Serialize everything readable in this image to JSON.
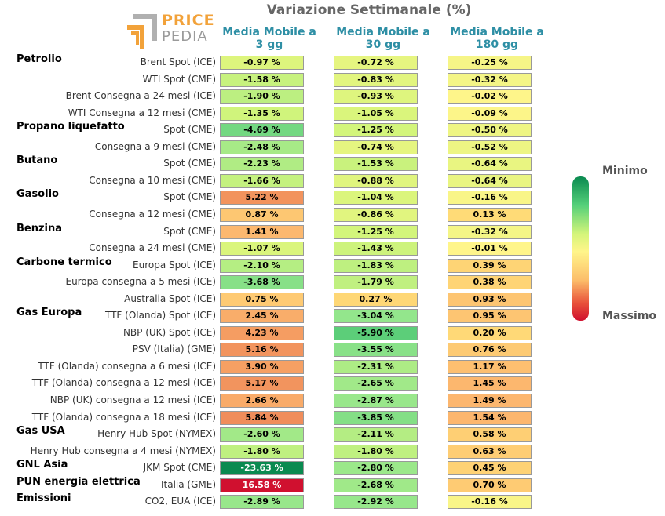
{
  "title": "Variazione Settimanale (%)",
  "logo": {
    "line1": "PRICE",
    "line2": "PEDIA"
  },
  "columns": [
    "Media Mobile a 3 gg",
    "Media Mobile a 30 gg",
    "Media Mobile a 180 gg"
  ],
  "legend": {
    "min_label": "Minimo",
    "max_label": "Massimo"
  },
  "colors": {
    "title": "#666666",
    "column_header": "#2e8fa5",
    "min": "#0a8a50",
    "max": "#d0102f"
  },
  "chart_data": {
    "type": "table",
    "title": "Variazione Settimanale (%)",
    "groups": [
      {
        "name": "Petrolio",
        "row": 0
      },
      {
        "name": "Propano liquefatto",
        "row": 4
      },
      {
        "name": "Butano",
        "row": 6
      },
      {
        "name": "Gasolio",
        "row": 8
      },
      {
        "name": "Benzina",
        "row": 10
      },
      {
        "name": "Carbone termico",
        "row": 12
      },
      {
        "name": "Gas Europa",
        "row": 15
      },
      {
        "name": "Gas USA",
        "row": 22
      },
      {
        "name": "GNL Asia",
        "row": 24
      },
      {
        "name": "PUN energia elettrica",
        "row": 25
      },
      {
        "name": "Emissioni",
        "row": 26
      }
    ],
    "rows": [
      {
        "label": "Brent Spot (ICE)",
        "values": [
          -0.97,
          -0.72,
          -0.25
        ]
      },
      {
        "label": "WTI Spot (CME)",
        "values": [
          -1.58,
          -0.83,
          -0.32
        ]
      },
      {
        "label": "Brent Consegna a 24 mesi (ICE)",
        "values": [
          -1.9,
          -0.93,
          -0.02
        ]
      },
      {
        "label": "WTI Consegna a 12 mesi (CME)",
        "values": [
          -1.35,
          -1.05,
          -0.09
        ]
      },
      {
        "label": "Spot (CME)",
        "values": [
          -4.69,
          -1.25,
          -0.5
        ]
      },
      {
        "label": "Consegna a 9 mesi (CME)",
        "values": [
          -2.48,
          -0.74,
          -0.52
        ]
      },
      {
        "label": "Spot (CME)",
        "values": [
          -2.23,
          -1.53,
          -0.64
        ]
      },
      {
        "label": "Consegna a 10 mesi (CME)",
        "values": [
          -1.66,
          -0.88,
          -0.64
        ]
      },
      {
        "label": "Spot (CME)",
        "values": [
          5.22,
          -1.04,
          -0.16
        ]
      },
      {
        "label": "Consegna a 12 mesi (CME)",
        "values": [
          0.87,
          -0.86,
          0.13
        ]
      },
      {
        "label": "Spot (CME)",
        "values": [
          1.41,
          -1.25,
          -0.32
        ]
      },
      {
        "label": "Consegna a 24 mesi (CME)",
        "values": [
          -1.07,
          -1.43,
          -0.01
        ]
      },
      {
        "label": "Europa Spot (ICE)",
        "values": [
          -2.1,
          -1.83,
          0.39
        ]
      },
      {
        "label": "Europa consegna a 5 mesi (ICE)",
        "values": [
          -3.68,
          -1.79,
          0.38
        ]
      },
      {
        "label": "Australia Spot (ICE)",
        "values": [
          0.75,
          0.27,
          0.93
        ]
      },
      {
        "label": "TTF (Olanda) Spot (ICE)",
        "values": [
          2.45,
          -3.04,
          0.95
        ]
      },
      {
        "label": "NBP (UK) Spot (ICE)",
        "values": [
          4.23,
          -5.9,
          0.2
        ]
      },
      {
        "label": "PSV (Italia) (GME)",
        "values": [
          5.16,
          -3.55,
          0.76
        ]
      },
      {
        "label": "TTF (Olanda) consegna a 6 mesi (ICE)",
        "values": [
          3.9,
          -2.31,
          1.17
        ]
      },
      {
        "label": "TTF (Olanda) consegna a 12 mesi (ICE)",
        "values": [
          5.17,
          -2.65,
          1.45
        ]
      },
      {
        "label": "NBP (UK) consegna a 12 mesi (ICE)",
        "values": [
          2.66,
          -2.87,
          1.49
        ]
      },
      {
        "label": "TTF (Olanda) consegna a 18 mesi (ICE)",
        "values": [
          5.84,
          -3.85,
          1.54
        ]
      },
      {
        "label": "Henry Hub Spot (NYMEX)",
        "values": [
          -2.6,
          -2.11,
          0.58
        ]
      },
      {
        "label": "Henry Hub consegna a 4 mesi (NYMEX)",
        "values": [
          -1.8,
          -1.8,
          0.63
        ]
      },
      {
        "label": "JKM Spot (CME)",
        "values": [
          -23.63,
          -2.8,
          0.45
        ]
      },
      {
        "label": "Italia (GME)",
        "values": [
          16.58,
          -2.68,
          0.7
        ]
      },
      {
        "label": "CO2, EUA (ICE)",
        "values": [
          -2.89,
          -2.92,
          -0.16
        ]
      }
    ]
  }
}
